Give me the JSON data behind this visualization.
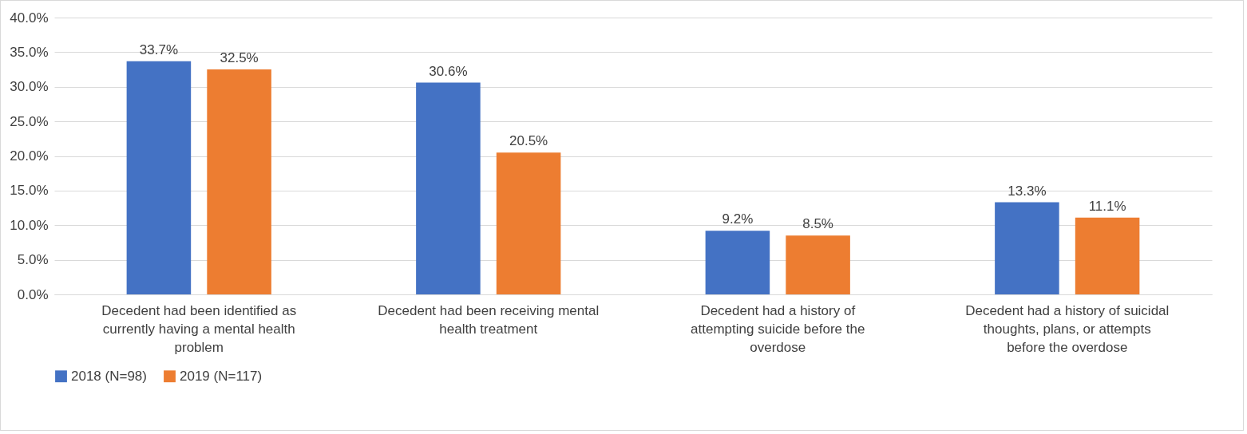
{
  "chart_data": {
    "type": "bar",
    "categories": [
      "Decedent had been identified as currently having a mental health problem",
      "Decedent had been receiving mental health treatment",
      "Decedent had a history of attempting suicide before the overdose",
      "Decedent had a history of suicidal thoughts, plans, or attempts before the overdose"
    ],
    "series": [
      {
        "name": "2018 (N=98)",
        "color": "#4472c4",
        "values": [
          33.7,
          30.6,
          9.2,
          13.3
        ],
        "value_labels": [
          "33.7%",
          "30.6%",
          "9.2%",
          "13.3%"
        ]
      },
      {
        "name": "2019 (N=117)",
        "color": "#ed7d31",
        "values": [
          32.5,
          20.5,
          8.5,
          11.1
        ],
        "value_labels": [
          "32.5%",
          "20.5%",
          "8.5%",
          "11.1%"
        ]
      }
    ],
    "ylim": [
      0,
      40
    ],
    "yticks": [
      {
        "value": 0,
        "label": "0.0%"
      },
      {
        "value": 5,
        "label": "5.0%"
      },
      {
        "value": 10,
        "label": "10.0%"
      },
      {
        "value": 15,
        "label": "15.0%"
      },
      {
        "value": 20,
        "label": "20.0%"
      },
      {
        "value": 25,
        "label": "25.0%"
      },
      {
        "value": 30,
        "label": "30.0%"
      },
      {
        "value": 35,
        "label": "35.0%"
      },
      {
        "value": 40,
        "label": "40.0%"
      }
    ],
    "grid": "y",
    "legend": "bottom"
  }
}
